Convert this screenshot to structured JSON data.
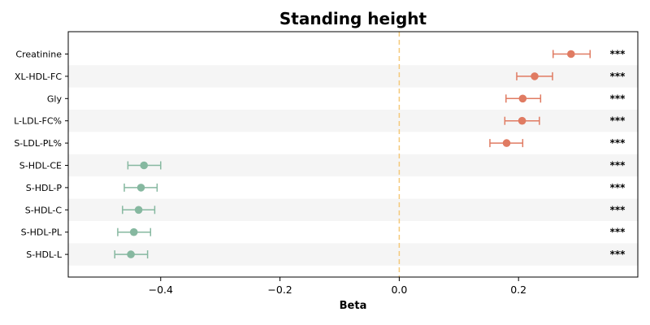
{
  "chart_data": {
    "type": "forest",
    "title": "Standing height",
    "xlabel": "Beta",
    "ylabel": "",
    "xlim": [
      -0.555,
      0.4
    ],
    "xticks": [
      -0.4,
      -0.2,
      0.0,
      0.2
    ],
    "xtick_labels": [
      "−0.4",
      "−0.2",
      "0.0",
      "0.2"
    ],
    "reference_line": 0.0,
    "grid": false,
    "striped_rows": true,
    "positive_color": "#e07b62",
    "negative_color": "#86b8a0",
    "reference_line_color": "#f5c97a",
    "stripe_color": "#f5f5f5",
    "rows": [
      {
        "label": "Creatinine",
        "beta": 0.288,
        "ci_low": 0.258,
        "ci_high": 0.32,
        "sig": "***"
      },
      {
        "label": "XL-HDL-FC",
        "beta": 0.227,
        "ci_low": 0.197,
        "ci_high": 0.257,
        "sig": "***"
      },
      {
        "label": "Gly",
        "beta": 0.207,
        "ci_low": 0.179,
        "ci_high": 0.237,
        "sig": "***"
      },
      {
        "label": "L-LDL-FC%",
        "beta": 0.206,
        "ci_low": 0.177,
        "ci_high": 0.235,
        "sig": "***"
      },
      {
        "label": "S-LDL-PL%",
        "beta": 0.18,
        "ci_low": 0.152,
        "ci_high": 0.207,
        "sig": "***"
      },
      {
        "label": "S-HDL-CE",
        "beta": -0.428,
        "ci_low": -0.455,
        "ci_high": -0.4,
        "sig": "***"
      },
      {
        "label": "S-HDL-P",
        "beta": -0.433,
        "ci_low": -0.461,
        "ci_high": -0.406,
        "sig": "***"
      },
      {
        "label": "S-HDL-C",
        "beta": -0.437,
        "ci_low": -0.464,
        "ci_high": -0.41,
        "sig": "***"
      },
      {
        "label": "S-HDL-PL",
        "beta": -0.445,
        "ci_low": -0.472,
        "ci_high": -0.417,
        "sig": "***"
      },
      {
        "label": "S-HDL-L",
        "beta": -0.45,
        "ci_low": -0.477,
        "ci_high": -0.422,
        "sig": "***"
      }
    ]
  }
}
